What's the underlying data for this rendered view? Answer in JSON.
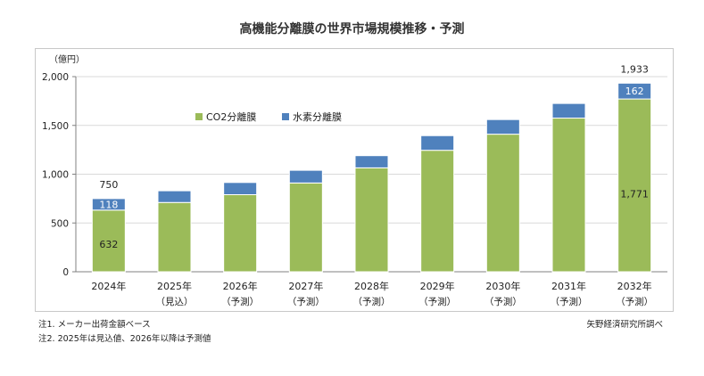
{
  "chart_title": "高機能分離膜の世界市場規模推移・予測",
  "colors": {
    "co2": "#9bbb59",
    "h2": "#4f81bd",
    "grid": "#d9d9d9",
    "axis": "#808080"
  },
  "notes": [
    "注1.  メーカー出荷金額ベース",
    "注2.  2025年は見込値、2026年以降は予測値"
  ],
  "source": "矢野経済研究所調べ",
  "chart_data": {
    "type": "bar",
    "stacked": true,
    "title": "高機能分離膜の世界市場規模推移・予測",
    "yunit": "（億円）",
    "ylim": [
      0,
      2000
    ],
    "yticks": [
      "0",
      "500",
      "1,000",
      "1,500",
      "2,000"
    ],
    "ytick_values": [
      0,
      500,
      1000,
      1500,
      2000
    ],
    "categories": [
      "2024年",
      "2025年",
      "2026年",
      "2027年",
      "2028年",
      "2029年",
      "2030年",
      "2031年",
      "2032年"
    ],
    "category_sub": [
      "",
      "（見込）",
      "（予測）",
      "（予測）",
      "（予測）",
      "（予測）",
      "（予測）",
      "（予測）",
      "（予測）"
    ],
    "series": [
      {
        "name": "CO2分離膜",
        "values": [
          632,
          710,
          790,
          910,
          1065,
          1245,
          1410,
          1575,
          1771
        ]
      },
      {
        "name": "水素分離膜",
        "values": [
          118,
          120,
          125,
          130,
          125,
          150,
          150,
          150,
          162
        ]
      }
    ],
    "data_labels": [
      {
        "category": "2024年",
        "co2": "632",
        "h2": "118",
        "total": "750"
      },
      {
        "category": "2032年",
        "co2": "1,771",
        "h2": "162",
        "total": "1,933"
      }
    ],
    "legend_position": "upper-left inside"
  }
}
